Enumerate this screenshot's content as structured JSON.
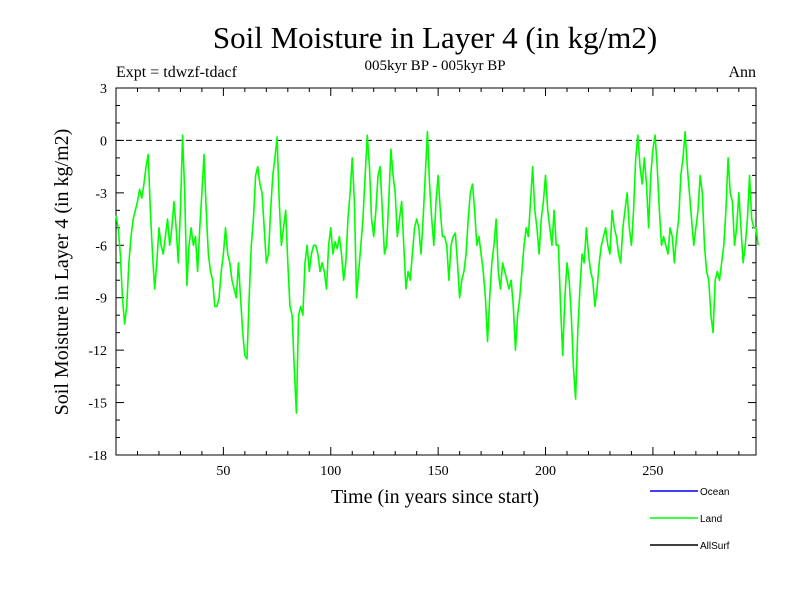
{
  "chart_data": {
    "type": "line",
    "title": "Soil Moisture in Layer 4 (in kg/m2)",
    "subtitle": "005kyr BP - 005kyr BP",
    "expt_label": "Expt = tdwzf-tdacf",
    "period_label": "Ann",
    "xlabel": "Time (in years since start)",
    "ylabel": "Soil Moisture in Layer 4 (in kg/m2)",
    "xlim": [
      0,
      298
    ],
    "ylim": [
      -18,
      3
    ],
    "xticks": [
      50,
      100,
      150,
      200,
      250
    ],
    "yticks": [
      3,
      0,
      -3,
      -6,
      -9,
      -12,
      -15,
      -18
    ],
    "reference_line": {
      "y": 0,
      "style": "dashed",
      "color": "#000000"
    },
    "legend_position": "bottom-right",
    "legend": [
      {
        "name": "Ocean",
        "color": "#0000ff"
      },
      {
        "name": "Land",
        "color": "#00ff00"
      },
      {
        "name": "AllSurf",
        "color": "#000000"
      }
    ],
    "series": [
      {
        "name": "Land",
        "color": "#00ff00",
        "x_start": 0,
        "x_step": 1,
        "values": [
          -4.3,
          -5,
          -6.5,
          -9,
          -10.5,
          -9.5,
          -7,
          -5.5,
          -4.5,
          -4,
          -3.5,
          -2.8,
          -3.3,
          -2.5,
          -1.5,
          -0.8,
          -4,
          -6.5,
          -8.5,
          -7,
          -5,
          -6,
          -6.5,
          -5.5,
          -4.5,
          -6,
          -5,
          -3.5,
          -5,
          -7,
          -4,
          0.3,
          -3,
          -8.3,
          -6,
          -5,
          -6,
          -5.5,
          -7.5,
          -5,
          -3,
          -0.8,
          -4,
          -6.5,
          -7.5,
          -8,
          -9.5,
          -9.5,
          -9,
          -7.5,
          -6.5,
          -5,
          -6.5,
          -7,
          -8,
          -8.5,
          -9,
          -7,
          -9,
          -11,
          -12.3,
          -12.5,
          -9,
          -6,
          -4.5,
          -2,
          -1.5,
          -2.5,
          -3,
          -5,
          -7,
          -6.5,
          -4,
          -2,
          -1,
          0.2,
          -3.5,
          -6,
          -5,
          -4,
          -7,
          -9.5,
          -10,
          -13,
          -15.6,
          -10,
          -9.5,
          -10,
          -7,
          -6,
          -7.5,
          -6.5,
          -6,
          -6,
          -6.5,
          -7.5,
          -7,
          -7.5,
          -8.5,
          -6,
          -5,
          -6.5,
          -5.8,
          -6.2,
          -5.5,
          -6.5,
          -8,
          -7,
          -4.5,
          -3,
          -1,
          -3.5,
          -9,
          -7.5,
          -6,
          -4.5,
          -2,
          0.3,
          -1.5,
          -4.5,
          -5.5,
          -4,
          -2,
          -1.5,
          -4,
          -6.5,
          -6,
          -3.5,
          -0.5,
          -2,
          -3,
          -5.5,
          -4.5,
          -3.5,
          -6,
          -8.5,
          -7.5,
          -8,
          -6.5,
          -5,
          -4.5,
          -5,
          -6.5,
          -4.5,
          -2,
          0.5,
          -2.5,
          -4.5,
          -6,
          -3.5,
          -2,
          -4,
          -5.5,
          -5.5,
          -6,
          -8,
          -6,
          -5.5,
          -5.3,
          -7,
          -9,
          -8,
          -7.5,
          -6.5,
          -4.5,
          -3,
          -2.5,
          -4,
          -6,
          -5.5,
          -6.5,
          -7.5,
          -9,
          -11.5,
          -9,
          -7,
          -6,
          -4.5,
          -7.5,
          -8.5,
          -7,
          -7.5,
          -8,
          -8.5,
          -8,
          -9.5,
          -12,
          -10,
          -9,
          -7.5,
          -6,
          -5,
          -5.5,
          -3.5,
          -1.5,
          -4,
          -5,
          -6.5,
          -4.5,
          -3.5,
          -2,
          -4,
          -5,
          -6,
          -4,
          -6,
          -6,
          -9.5,
          -12.3,
          -9,
          -7,
          -8,
          -10,
          -13,
          -14.8,
          -11,
          -8.5,
          -6.5,
          -7,
          -5,
          -6.5,
          -7.5,
          -8,
          -9.5,
          -8.5,
          -7,
          -6,
          -5.5,
          -5,
          -6,
          -6.5,
          -4,
          -5,
          -5.5,
          -6.5,
          -7,
          -5,
          -4,
          -3,
          -5,
          -6,
          -4,
          -1,
          0.3,
          -1.5,
          -2.5,
          -1,
          -2.5,
          -5,
          -2,
          -0.5,
          0.3,
          -1.5,
          -4,
          -6,
          -5.5,
          -6,
          -6.5,
          -5,
          -5.5,
          -7,
          -5.5,
          -4.5,
          -2,
          -1,
          0.5,
          -1.5,
          -3,
          -4.5,
          -6,
          -5,
          -4,
          -2,
          -3,
          -6,
          -7.5,
          -8,
          -10,
          -11,
          -8,
          -7.5,
          -8,
          -7,
          -6,
          -4,
          -1,
          -3,
          -3.5,
          -6,
          -5,
          -3,
          -5,
          -7,
          -6,
          -4.5,
          -2,
          -4.5,
          -5,
          -5,
          -6
        ]
      }
    ]
  }
}
